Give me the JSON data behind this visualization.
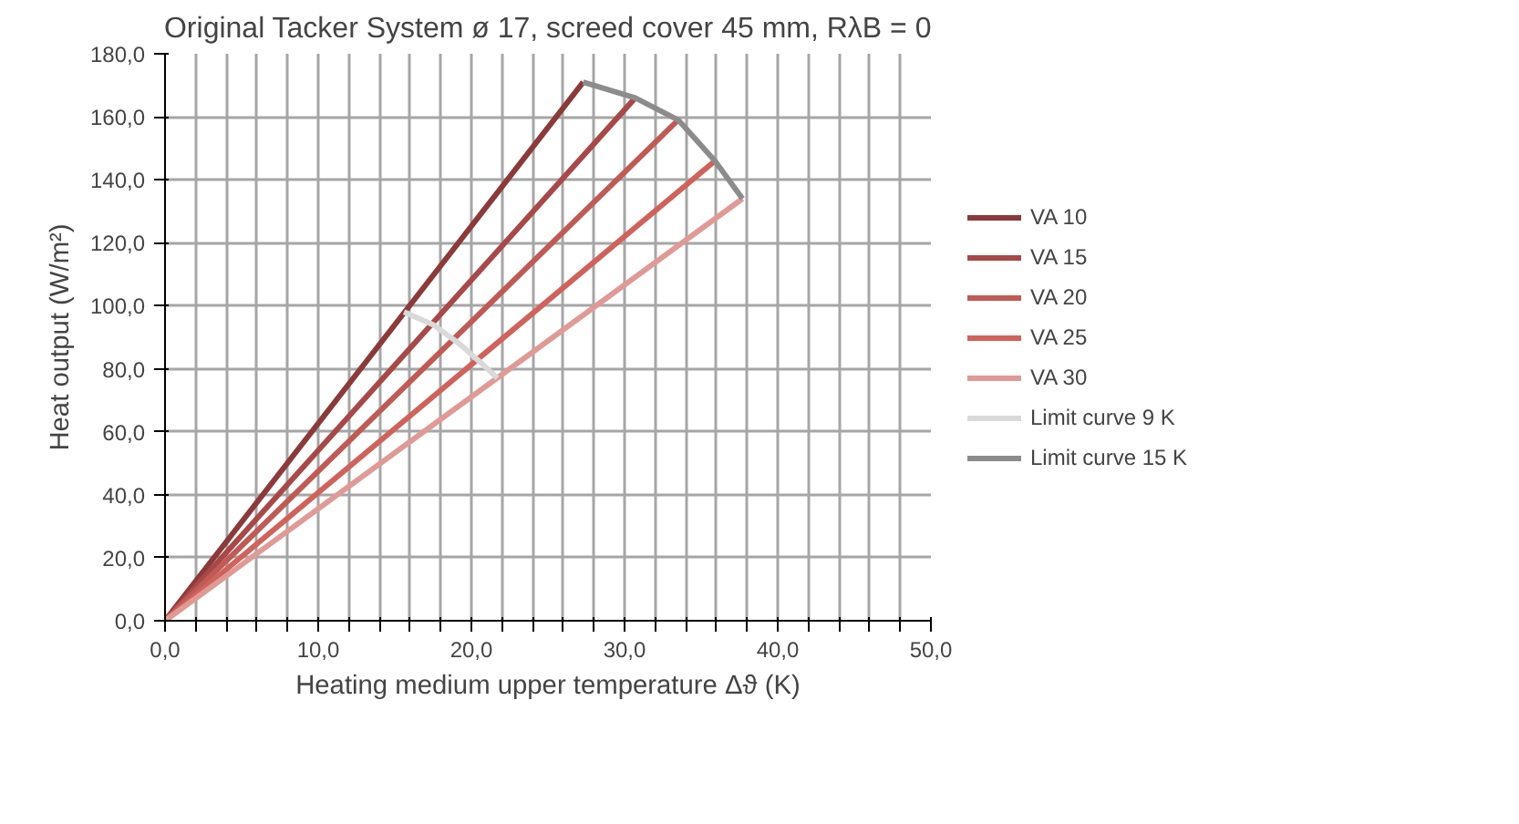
{
  "chart_data": {
    "type": "line",
    "title": "Original Tacker System ø 17, screed cover 45 mm, RλB = 0",
    "xlabel": "Heating medium upper temperature Δϑ (K)",
    "ylabel": "Heat output (W/m²)",
    "xlim": [
      0,
      50
    ],
    "ylim": [
      0,
      180
    ],
    "xticks": [
      {
        "value": 0,
        "label": "0,0"
      },
      {
        "value": 2,
        "label": null
      },
      {
        "value": 4,
        "label": null
      },
      {
        "value": 6,
        "label": null
      },
      {
        "value": 8,
        "label": null
      },
      {
        "value": 10,
        "label": "10,0"
      },
      {
        "value": 12,
        "label": null
      },
      {
        "value": 14,
        "label": null
      },
      {
        "value": 16,
        "label": null
      },
      {
        "value": 18,
        "label": null
      },
      {
        "value": 20,
        "label": "20,0"
      },
      {
        "value": 22,
        "label": null
      },
      {
        "value": 24,
        "label": null
      },
      {
        "value": 26,
        "label": null
      },
      {
        "value": 28,
        "label": null
      },
      {
        "value": 30,
        "label": "30,0"
      },
      {
        "value": 32,
        "label": null
      },
      {
        "value": 34,
        "label": null
      },
      {
        "value": 36,
        "label": null
      },
      {
        "value": 38,
        "label": null
      },
      {
        "value": 40,
        "label": "40,0"
      },
      {
        "value": 42,
        "label": null
      },
      {
        "value": 44,
        "label": null
      },
      {
        "value": 46,
        "label": null
      },
      {
        "value": 48,
        "label": null
      },
      {
        "value": 50,
        "label": "50,0"
      }
    ],
    "yticks": [
      {
        "value": 0,
        "label": "0,0"
      },
      {
        "value": 20,
        "label": "20,0"
      },
      {
        "value": 40,
        "label": "40,0"
      },
      {
        "value": 60,
        "label": "60,0"
      },
      {
        "value": 80,
        "label": "80,0"
      },
      {
        "value": 100,
        "label": "100,0"
      },
      {
        "value": 120,
        "label": "120,0"
      },
      {
        "value": 140,
        "label": "140,0"
      },
      {
        "value": 160,
        "label": "160,0"
      },
      {
        "value": 180,
        "label": "180,0"
      }
    ],
    "grid": true,
    "legend": "right",
    "marker": "none",
    "line_style": "solid",
    "series": [
      {
        "name": "VA 10",
        "color": "#8b3a3a",
        "x": [
          0,
          27.3
        ],
        "values": [
          0,
          171
        ]
      },
      {
        "name": "VA 15",
        "color": "#a84848",
        "x": [
          0,
          30.7
        ],
        "values": [
          0,
          166
        ]
      },
      {
        "name": "VA 20",
        "color": "#bf5a55",
        "x": [
          0,
          33.5
        ],
        "values": [
          0,
          159
        ]
      },
      {
        "name": "VA 25",
        "color": "#d0625c",
        "x": [
          0,
          35.9
        ],
        "values": [
          0,
          146
        ]
      },
      {
        "name": "VA 30",
        "color": "#e09a96",
        "x": [
          0,
          37.7
        ],
        "values": [
          0,
          134
        ]
      },
      {
        "name": "Limit curve 9 K",
        "color": "#d9d9d9",
        "x": [
          15.6,
          17.5,
          19.2,
          20.6,
          21.7
        ],
        "values": [
          98,
          94,
          88,
          82,
          77
        ]
      },
      {
        "name": "Limit curve 15 K",
        "color": "#8c8c8c",
        "x": [
          27.3,
          30.7,
          33.5,
          35.9,
          37.7
        ],
        "values": [
          171,
          166,
          159,
          146,
          134
        ]
      }
    ]
  }
}
